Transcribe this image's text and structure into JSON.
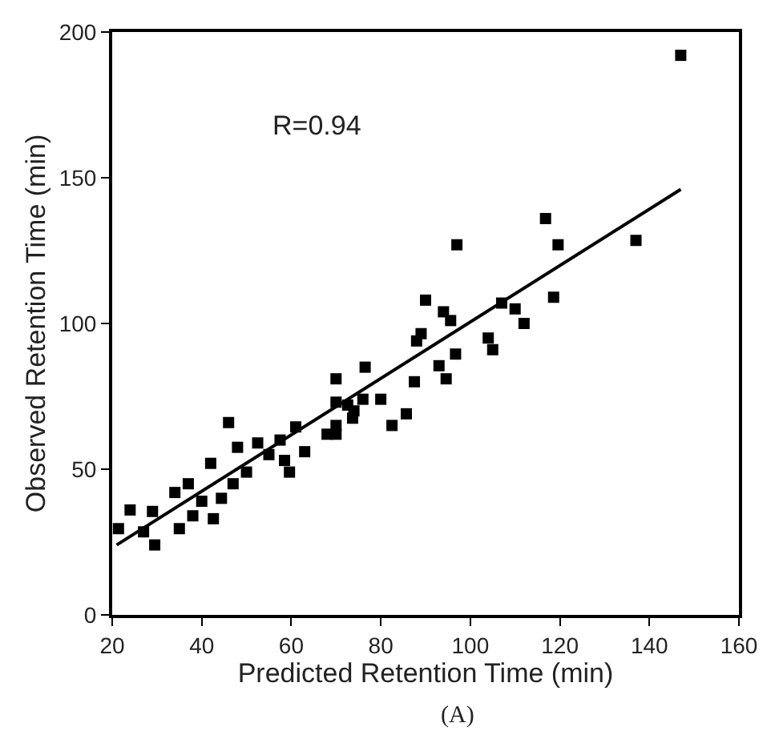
{
  "chart_data": {
    "type": "scatter",
    "xlabel": "Predicted Retention Time (min)",
    "ylabel": "Observed Retention Time (min)",
    "annotations": [
      "R=0.94",
      "(A)"
    ],
    "xlim": [
      20,
      160
    ],
    "ylim": [
      0,
      200
    ],
    "xticks": [
      20,
      40,
      60,
      80,
      100,
      120,
      140,
      160
    ],
    "yticks": [
      0,
      50,
      100,
      150,
      200
    ],
    "legend": false,
    "marker": "square",
    "series": [
      {
        "color": "#000000",
        "x": [
          116.8,
          119.6,
          97,
          118.6,
          90,
          94,
          95.6,
          107,
          110,
          112,
          89,
          88,
          104,
          105,
          96.7,
          93,
          94.6,
          87.5,
          76.5,
          70,
          72.6,
          76,
          80,
          85.7,
          82.5,
          70,
          73.7,
          70,
          74,
          46,
          48,
          42,
          52.5,
          55,
          58.5,
          61,
          63,
          50,
          47,
          44.4,
          37,
          34,
          40,
          24,
          29,
          21.4,
          27,
          29.5,
          35,
          42.6,
          38,
          59.6,
          57.5,
          68,
          70,
          137,
          147
        ],
        "values": [
          136,
          127,
          127,
          109,
          108,
          104,
          101,
          107,
          105,
          100,
          96.5,
          94,
          95,
          91,
          89.5,
          85.5,
          81,
          80,
          85,
          81,
          72,
          74,
          74,
          69,
          65,
          62,
          67.5,
          73,
          70,
          66,
          57.5,
          52,
          59,
          55,
          53,
          64.5,
          56,
          49,
          45,
          40,
          45,
          42,
          39,
          36,
          35.5,
          29.6,
          28.5,
          24,
          29.6,
          33,
          34,
          49,
          60,
          62,
          65,
          128.5,
          192
        ]
      },
      {
        "type": "line",
        "color": "#000000",
        "x": [
          21,
          147
        ],
        "values": [
          24,
          146
        ],
        "line_style": "solid",
        "marker": "none"
      }
    ]
  }
}
